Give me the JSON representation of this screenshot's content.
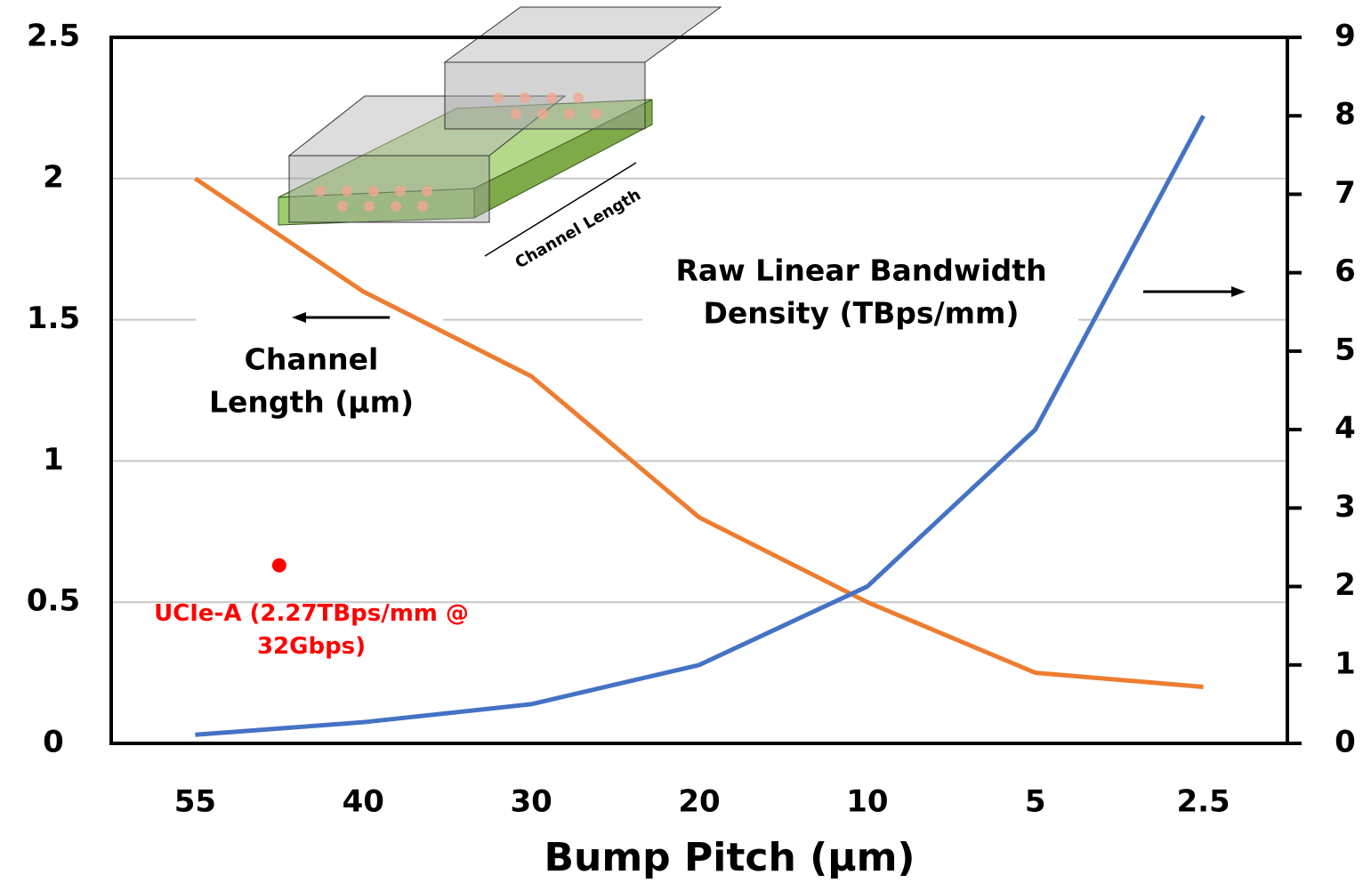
{
  "chart_data": {
    "type": "line",
    "x_label": "Bump Pitch (μm)",
    "categories": [
      "55",
      "40",
      "30",
      "20",
      "10",
      "5",
      "2.5"
    ],
    "series": [
      {
        "color": "#ED7D31",
        "values": [
          2.0,
          1.6,
          1.3,
          0.8,
          0.5,
          0.25,
          0.2
        ]
      },
      {
        "color": "#4472C4",
        "axis": "y2",
        "values": [
          0.11,
          0.27,
          0.5,
          1.0,
          2.0,
          4.0,
          8.0
        ]
      }
    ],
    "ylim": [
      0,
      2.5
    ],
    "yticks": [
      0,
      0.5,
      1,
      1.5,
      2,
      2.5
    ],
    "y2lim": [
      0,
      9
    ],
    "y2ticks": [
      0,
      1,
      2,
      3,
      4,
      5,
      6,
      7,
      8,
      9
    ],
    "grid": true,
    "annotations": [
      {
        "lines": [
          "Channel",
          "Length (μm)"
        ]
      },
      {
        "lines": [
          "Raw Linear Bandwidth",
          "Density (TBps/mm)"
        ]
      }
    ],
    "point": {
      "value": 2.27,
      "axis": "y2",
      "color": "#FF0000",
      "lines": [
        "UCIe-A (2.27TBps/mm @",
        "32Gbps)"
      ]
    },
    "illustration_label": "Channel Length"
  }
}
